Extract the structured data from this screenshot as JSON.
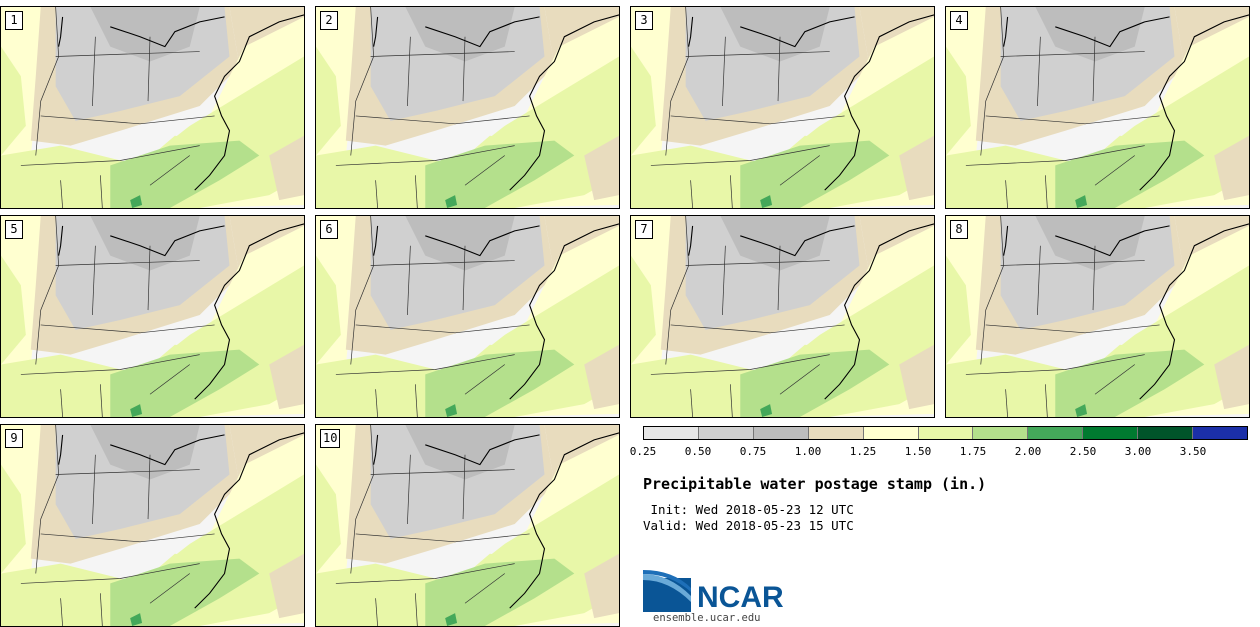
{
  "title": "Precipitable water postage stamp (in.)",
  "init_line": " Init: Wed 2018-05-23 12 UTC",
  "valid_line": "Valid: Wed 2018-05-23 15 UTC",
  "logo": {
    "text": "NCAR",
    "url": "ensemble.ucar.edu"
  },
  "colorbar": {
    "units": "in.",
    "ticks": [
      "0.25",
      "0.50",
      "0.75",
      "1.00",
      "1.25",
      "1.50",
      "1.75",
      "2.00",
      "2.50",
      "3.00",
      "3.50"
    ],
    "colors": [
      "#e6e6e6",
      "#d0d0d0",
      "#bdbdbd",
      "#e8dcbe",
      "#ffffd0",
      "#e8f7a8",
      "#b4e08c",
      "#44a85a",
      "#007a30",
      "#00542a",
      "#1b2fa8"
    ]
  },
  "members": [
    {
      "label": "1"
    },
    {
      "label": "2"
    },
    {
      "label": "3"
    },
    {
      "label": "4"
    },
    {
      "label": "5"
    },
    {
      "label": "6"
    },
    {
      "label": "7"
    },
    {
      "label": "8"
    },
    {
      "label": "9"
    },
    {
      "label": "10"
    }
  ]
}
